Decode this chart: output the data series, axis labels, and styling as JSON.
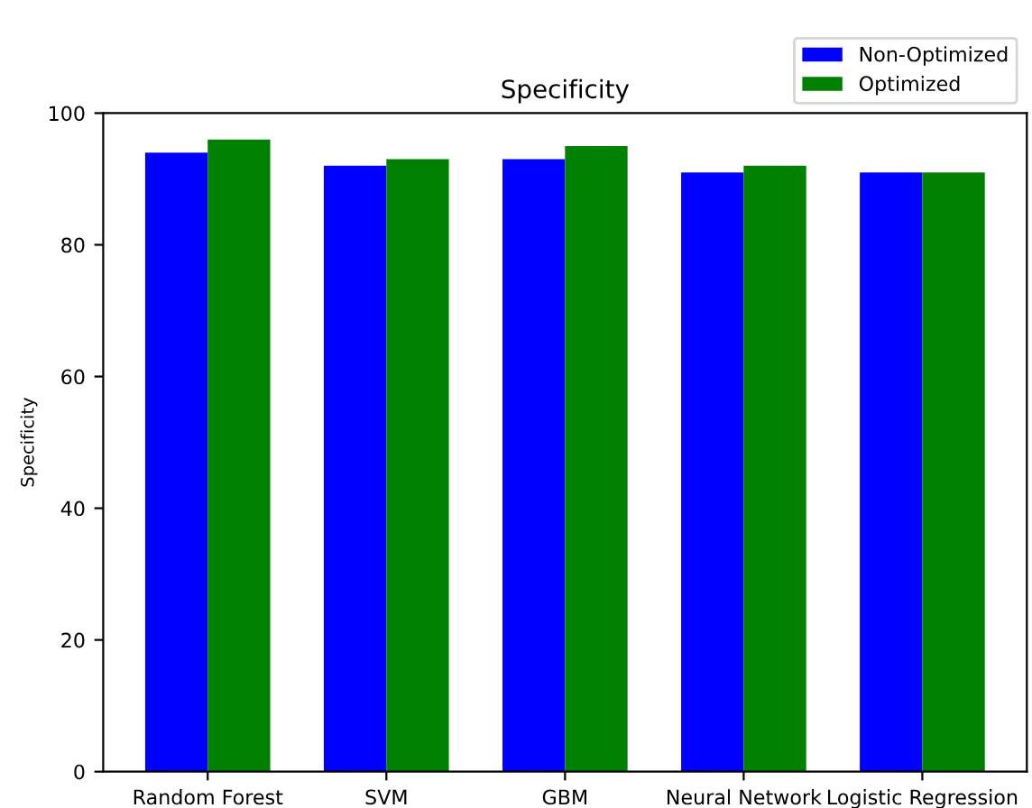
{
  "chart_data": {
    "type": "bar",
    "title": "Specificity",
    "ylabel": "Specificity",
    "categories": [
      "Random Forest",
      "SVM",
      "GBM",
      "Neural Network",
      "Logistic Regression"
    ],
    "series": [
      {
        "name": "Non-Optimized",
        "color": "#0000ff",
        "values": [
          94,
          92,
          93,
          91,
          91
        ]
      },
      {
        "name": "Optimized",
        "color": "#008000",
        "values": [
          96,
          93,
          95,
          92,
          91
        ]
      }
    ],
    "ylim": [
      0,
      100
    ],
    "yticks": [
      0,
      20,
      40,
      60,
      80,
      100
    ],
    "legend": "top right",
    "grid": false
  }
}
